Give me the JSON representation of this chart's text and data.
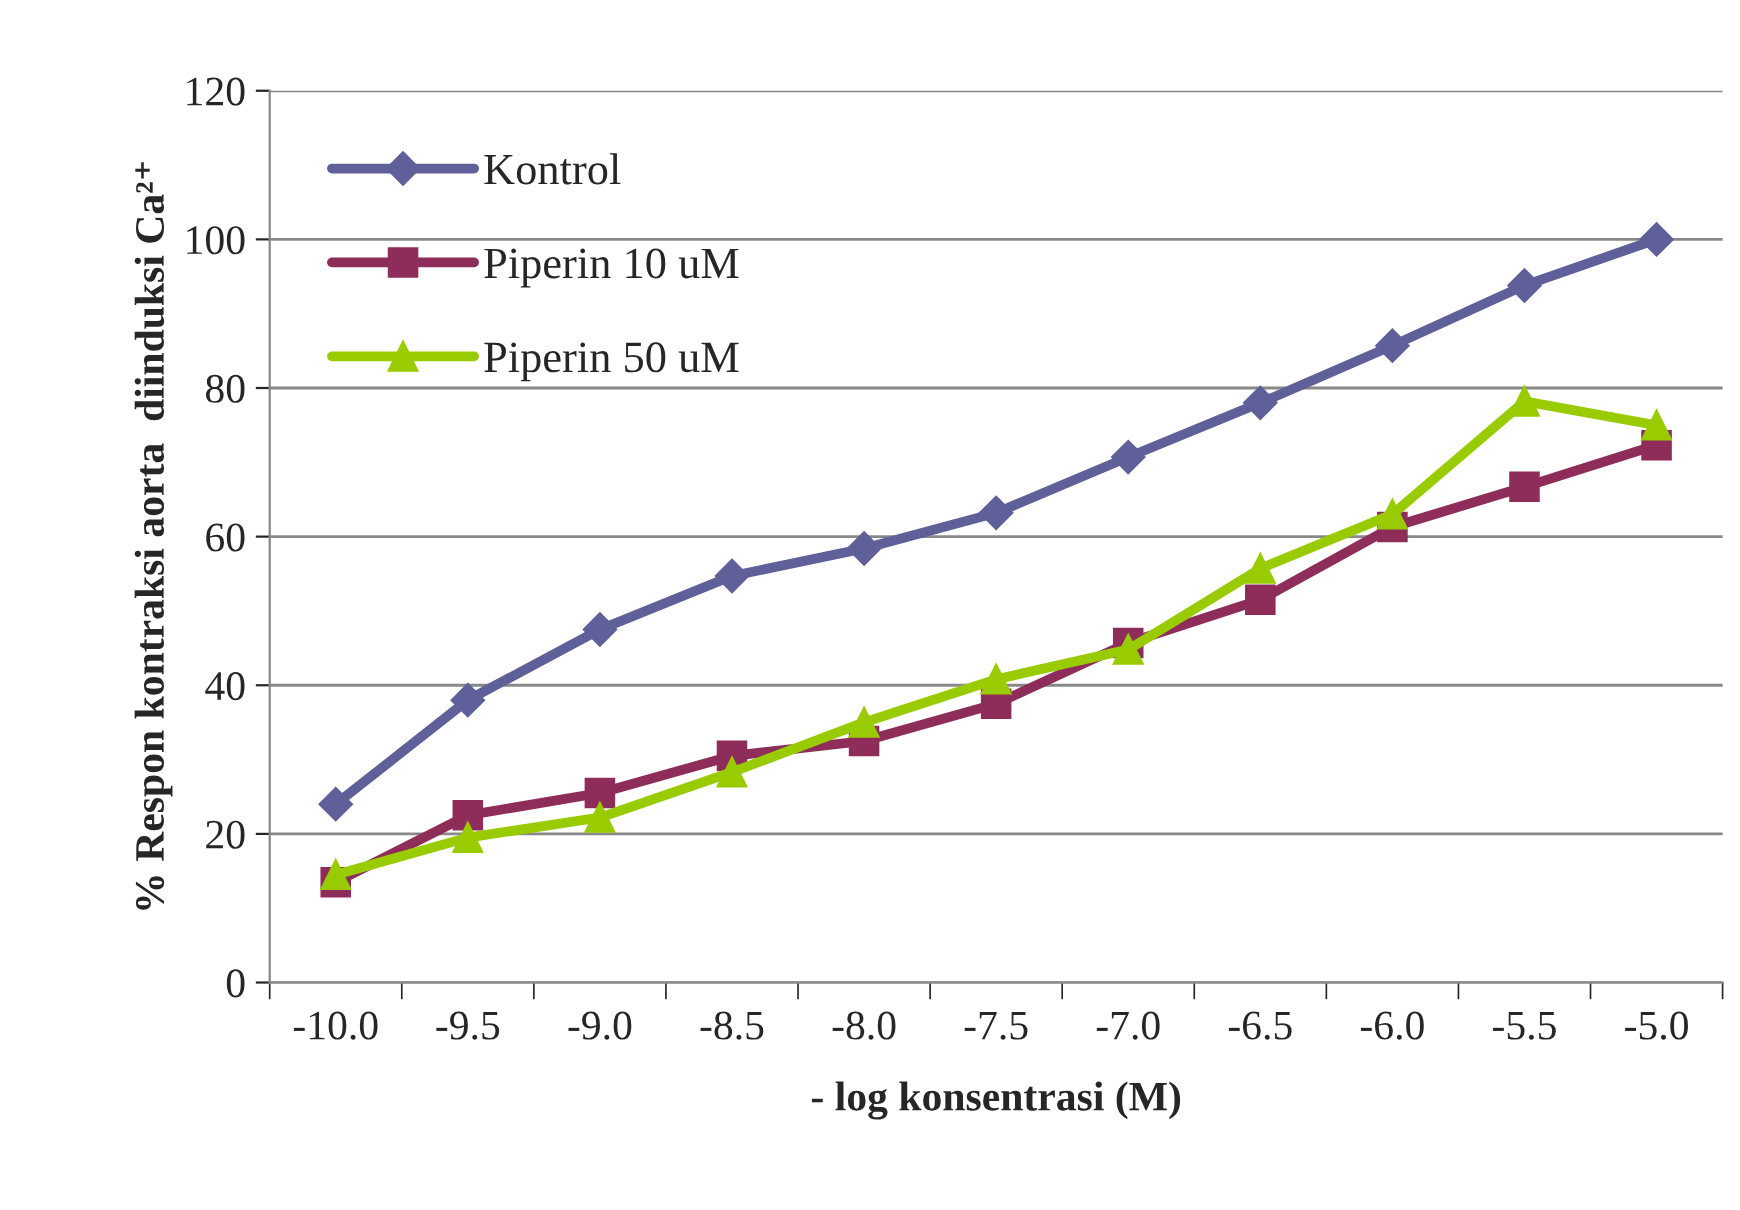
{
  "chart_data": {
    "type": "line",
    "xlabel": "- log konsentrasi (M)",
    "ylabel": "% Respon kontraksi aorta  diinduksi Ca²⁺",
    "categories": [
      "-10.0",
      "-9.5",
      "-9.0",
      "-8.5",
      "-8.0",
      "-7.5",
      "-7.0",
      "-6.5",
      "-6.0",
      "-5.5",
      "-5.0"
    ],
    "series": [
      {
        "name": "Kontrol",
        "color": "#5f5f9a",
        "marker": "diamond",
        "values": [
          24,
          38,
          47.5,
          54.7,
          58.4,
          63.2,
          70.7,
          78,
          85.7,
          93.8,
          100
        ]
      },
      {
        "name": "Piperin 10 uM",
        "color": "#8e2d5a",
        "marker": "square",
        "values": [
          13.5,
          22.5,
          25.5,
          30.5,
          32.5,
          37.5,
          45.7,
          51.5,
          61.3,
          66.7,
          72.3
        ]
      },
      {
        "name": "Piperin 50 uM",
        "color": "#99cc00",
        "marker": "triangle",
        "values": [
          14.5,
          19.5,
          22.2,
          28.3,
          35,
          40.8,
          44.8,
          55.7,
          63,
          78.2,
          75
        ]
      }
    ],
    "ylim": [
      0,
      120
    ],
    "yticks": [
      0,
      20,
      40,
      60,
      80,
      100,
      120
    ],
    "grid": "y",
    "legend": "top left",
    "line_style": "solid"
  }
}
